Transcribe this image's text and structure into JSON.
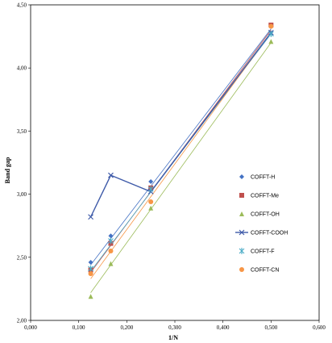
{
  "chart_data": {
    "type": "scatter",
    "xlabel": "1/N",
    "ylabel": "Band gap",
    "xlim": [
      0,
      0.6
    ],
    "ylim": [
      2,
      4.5
    ],
    "x_ticks": [
      "0,000",
      "0,100",
      "0,200",
      "0,300",
      "0,400",
      "0,500",
      "0,600"
    ],
    "y_ticks": [
      "2,00",
      "2,50",
      "3,00",
      "3,50",
      "4,00",
      "4,50"
    ],
    "legend_position": "right",
    "series": [
      {
        "name": "COFFT-H",
        "color": "#4472C4",
        "marker": "diamond",
        "x": [
          0.125,
          0.1667,
          0.25,
          0.5
        ],
        "y": [
          2.46,
          2.67,
          3.1,
          4.34
        ],
        "trendline": [
          [
            0.125,
            2.44
          ],
          [
            0.5,
            4.31
          ]
        ]
      },
      {
        "name": "COFFT-Me",
        "color": "#C0504D",
        "marker": "square",
        "x": [
          0.125,
          0.1667,
          0.25,
          0.5
        ],
        "y": [
          2.4,
          2.61,
          3.05,
          4.34
        ],
        "trendline": [
          [
            0.125,
            2.38
          ],
          [
            0.5,
            4.3
          ]
        ]
      },
      {
        "name": "COFFT-OH",
        "color": "#9BBB59",
        "marker": "triangle",
        "x": [
          0.125,
          0.1667,
          0.25,
          0.5
        ],
        "y": [
          2.19,
          2.45,
          2.89,
          4.21
        ],
        "trendline": [
          [
            0.125,
            2.22
          ],
          [
            0.5,
            4.2
          ]
        ]
      },
      {
        "name": "COFFT-COOH",
        "color": "#3F5BA9",
        "marker": "x",
        "connected": true,
        "x": [
          0.125,
          0.1667,
          0.25,
          0.5
        ],
        "y": [
          2.82,
          3.15,
          3.02,
          4.28
        ]
      },
      {
        "name": "COFFT-F",
        "color": "#4BACC6",
        "marker": "star",
        "x": [
          0.125,
          0.1667,
          0.25,
          0.5
        ],
        "y": [
          2.41,
          2.63,
          3.04,
          4.27
        ],
        "trendline": [
          [
            0.125,
            2.39
          ],
          [
            0.5,
            4.27
          ]
        ]
      },
      {
        "name": "COFFT-CN",
        "color": "#F79646",
        "marker": "circle",
        "x": [
          0.125,
          0.1667,
          0.25,
          0.5
        ],
        "y": [
          2.37,
          2.55,
          2.94,
          4.33
        ],
        "trendline": [
          [
            0.125,
            2.33
          ],
          [
            0.5,
            4.28
          ]
        ]
      }
    ]
  }
}
